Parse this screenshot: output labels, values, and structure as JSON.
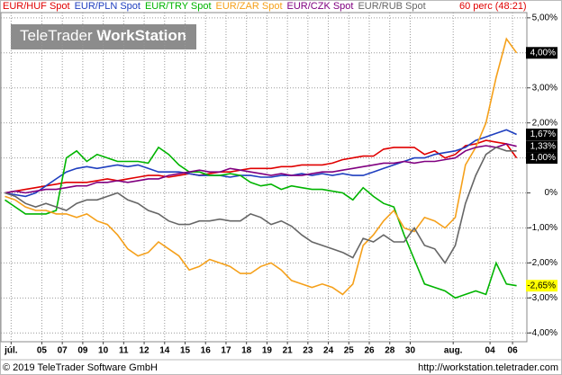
{
  "chart_data": {
    "type": "line",
    "logo": {
      "brand": "TeleTrader",
      "product": "WorkStation"
    },
    "interval": "60 perc (48:21)",
    "footer_left": "© 2019 TeleTrader Software GmbH",
    "footer_right": "http://workstation.teletrader.com",
    "grid": true,
    "xlim": [
      -1,
      24.7
    ],
    "xticks": [
      {
        "value": -0.5,
        "label": "júl."
      },
      {
        "value": 1,
        "label": "05"
      },
      {
        "value": 2,
        "label": "07"
      },
      {
        "value": 3,
        "label": "09"
      },
      {
        "value": 4,
        "label": "10"
      },
      {
        "value": 5,
        "label": "11"
      },
      {
        "value": 6,
        "label": "12"
      },
      {
        "value": 7,
        "label": "14"
      },
      {
        "value": 8,
        "label": "15"
      },
      {
        "value": 9,
        "label": "16"
      },
      {
        "value": 10,
        "label": "17"
      },
      {
        "value": 11,
        "label": "18"
      },
      {
        "value": 12,
        "label": "19"
      },
      {
        "value": 13,
        "label": "21"
      },
      {
        "value": 14,
        "label": "23"
      },
      {
        "value": 15,
        "label": "24"
      },
      {
        "value": 16,
        "label": "25"
      },
      {
        "value": 17,
        "label": "26"
      },
      {
        "value": 18,
        "label": "28"
      },
      {
        "value": 19,
        "label": "30"
      },
      {
        "value": 21.1,
        "label": "aug."
      },
      {
        "value": 22.9,
        "label": "04"
      },
      {
        "value": 24,
        "label": "06"
      }
    ],
    "ylim": [
      -4.25,
      5.15
    ],
    "yticks": [
      {
        "value": 5,
        "label": "5,00%"
      },
      {
        "value": 4,
        "label": "4,00%"
      },
      {
        "value": 3,
        "label": "3,00%"
      },
      {
        "value": 2,
        "label": "2,00%"
      },
      {
        "value": 1,
        "label": "1,00%"
      },
      {
        "value": 0,
        "label": "0%"
      },
      {
        "value": -1,
        "label": "-1,00%"
      },
      {
        "value": -2,
        "label": "-2,00%"
      },
      {
        "value": -3,
        "label": "-3,00%"
      },
      {
        "value": -4,
        "label": "-4,00%"
      }
    ],
    "x": [
      -0.8,
      -0.3,
      0.2,
      0.7,
      1.2,
      1.7,
      2.2,
      2.7,
      3.2,
      3.7,
      4.2,
      4.7,
      5.2,
      5.7,
      6.2,
      6.7,
      7.2,
      7.7,
      8.2,
      8.7,
      9.2,
      9.7,
      10.2,
      10.7,
      11.2,
      11.7,
      12.2,
      12.7,
      13.2,
      13.7,
      14.2,
      14.7,
      15.2,
      15.7,
      16.2,
      16.7,
      17.2,
      17.7,
      18.2,
      18.7,
      19.2,
      19.7,
      20.2,
      20.7,
      21.2,
      21.7,
      22.2,
      22.7,
      23.2,
      23.7,
      24.2
    ],
    "series": [
      {
        "name": "EUR/HUF Spot",
        "color": "#e00000",
        "last_label": "1,00%",
        "last_label_bg": "#000000",
        "values": [
          0.0,
          0.05,
          0.1,
          0.15,
          0.2,
          0.25,
          0.3,
          0.3,
          0.3,
          0.35,
          0.4,
          0.35,
          0.4,
          0.45,
          0.5,
          0.5,
          0.45,
          0.5,
          0.55,
          0.5,
          0.55,
          0.6,
          0.6,
          0.65,
          0.7,
          0.7,
          0.7,
          0.75,
          0.75,
          0.8,
          0.8,
          0.8,
          0.85,
          0.95,
          1.0,
          1.05,
          1.05,
          1.25,
          1.3,
          1.3,
          1.3,
          1.1,
          1.2,
          1.0,
          1.1,
          1.35,
          1.4,
          1.5,
          1.45,
          1.4,
          1.0
        ]
      },
      {
        "name": "EUR/PLN Spot",
        "color": "#1f3fbf",
        "last_label": "1,67%",
        "last_label_bg": "#000000",
        "values": [
          0,
          -0.05,
          -0.1,
          0,
          0.2,
          0.4,
          0.6,
          0.7,
          0.75,
          0.7,
          0.75,
          0.8,
          0.75,
          0.8,
          0.7,
          0.6,
          0.6,
          0.6,
          0.55,
          0.5,
          0.5,
          0.5,
          0.45,
          0.5,
          0.5,
          0.45,
          0.45,
          0.5,
          0.5,
          0.55,
          0.5,
          0.55,
          0.5,
          0.55,
          0.5,
          0.5,
          0.6,
          0.7,
          0.8,
          0.9,
          1.0,
          1.0,
          1.1,
          1.15,
          1.2,
          1.3,
          1.5,
          1.6,
          1.7,
          1.8,
          1.67
        ]
      },
      {
        "name": "EUR/TRY Spot",
        "color": "#00b400",
        "last_label": "-2,65%",
        "last_label_bg": "#ffff00",
        "values": [
          -0.2,
          -0.4,
          -0.6,
          -0.6,
          -0.6,
          -0.5,
          1.0,
          1.2,
          0.9,
          1.1,
          1.0,
          0.9,
          0.9,
          0.9,
          0.85,
          1.3,
          1.1,
          0.8,
          0.6,
          0.6,
          0.5,
          0.5,
          0.55,
          0.5,
          0.3,
          0.2,
          0.25,
          0.1,
          0.2,
          0.15,
          0.1,
          0.1,
          0.05,
          0.0,
          -0.2,
          0.15,
          -0.1,
          -0.3,
          -0.4,
          -1.2,
          -1.9,
          -2.6,
          -2.7,
          -2.8,
          -3.0,
          -2.9,
          -2.8,
          -2.9,
          -2.0,
          -2.6,
          -2.65
        ]
      },
      {
        "name": "EUR/ZAR Spot",
        "color": "#f5a01a",
        "last_label": "4,00%",
        "last_label_bg": "#000000",
        "values": [
          -0.1,
          -0.2,
          -0.4,
          -0.5,
          -0.5,
          -0.6,
          -0.6,
          -0.7,
          -0.6,
          -0.8,
          -0.9,
          -1.2,
          -1.6,
          -1.8,
          -1.7,
          -1.4,
          -1.6,
          -1.8,
          -2.2,
          -2.1,
          -1.9,
          -2.0,
          -2.1,
          -2.3,
          -2.3,
          -2.1,
          -2.0,
          -2.2,
          -2.5,
          -2.6,
          -2.7,
          -2.6,
          -2.7,
          -2.9,
          -2.6,
          -1.5,
          -1.2,
          -0.8,
          -0.5,
          -1.0,
          -1.1,
          -0.7,
          -0.8,
          -1.0,
          -0.7,
          0.8,
          1.3,
          2.0,
          3.3,
          4.4,
          4.0
        ]
      },
      {
        "name": "EUR/CZK Spot",
        "color": "#800080",
        "last_label": "1,33%",
        "last_label_bg": "#000000",
        "values": [
          0,
          0.05,
          0,
          0.05,
          0.1,
          0.1,
          0.15,
          0.2,
          0.2,
          0.3,
          0.3,
          0.35,
          0.3,
          0.35,
          0.4,
          0.4,
          0.5,
          0.55,
          0.6,
          0.65,
          0.6,
          0.6,
          0.7,
          0.65,
          0.6,
          0.55,
          0.5,
          0.55,
          0.5,
          0.5,
          0.55,
          0.6,
          0.6,
          0.65,
          0.7,
          0.75,
          0.8,
          0.85,
          0.85,
          0.9,
          0.85,
          0.9,
          0.9,
          0.95,
          1.0,
          1.2,
          1.3,
          1.35,
          1.3,
          1.4,
          1.33
        ]
      },
      {
        "name": "EUR/RUB Spot",
        "color": "#666666",
        "values": [
          0,
          -0.1,
          -0.3,
          -0.4,
          -0.3,
          -0.4,
          -0.5,
          -0.3,
          -0.2,
          -0.2,
          -0.1,
          0,
          -0.2,
          -0.3,
          -0.5,
          -0.6,
          -0.8,
          -0.9,
          -0.9,
          -0.8,
          -0.8,
          -0.75,
          -0.8,
          -0.8,
          -0.6,
          -0.7,
          -0.9,
          -0.8,
          -0.95,
          -1.2,
          -1.4,
          -1.5,
          -1.6,
          -1.7,
          -1.85,
          -1.3,
          -1.4,
          -1.2,
          -1.4,
          -1.4,
          -1.0,
          -1.5,
          -1.6,
          -2.0,
          -1.5,
          -0.3,
          0.5,
          1.1,
          1.3,
          1.2,
          1.2
        ]
      }
    ]
  }
}
